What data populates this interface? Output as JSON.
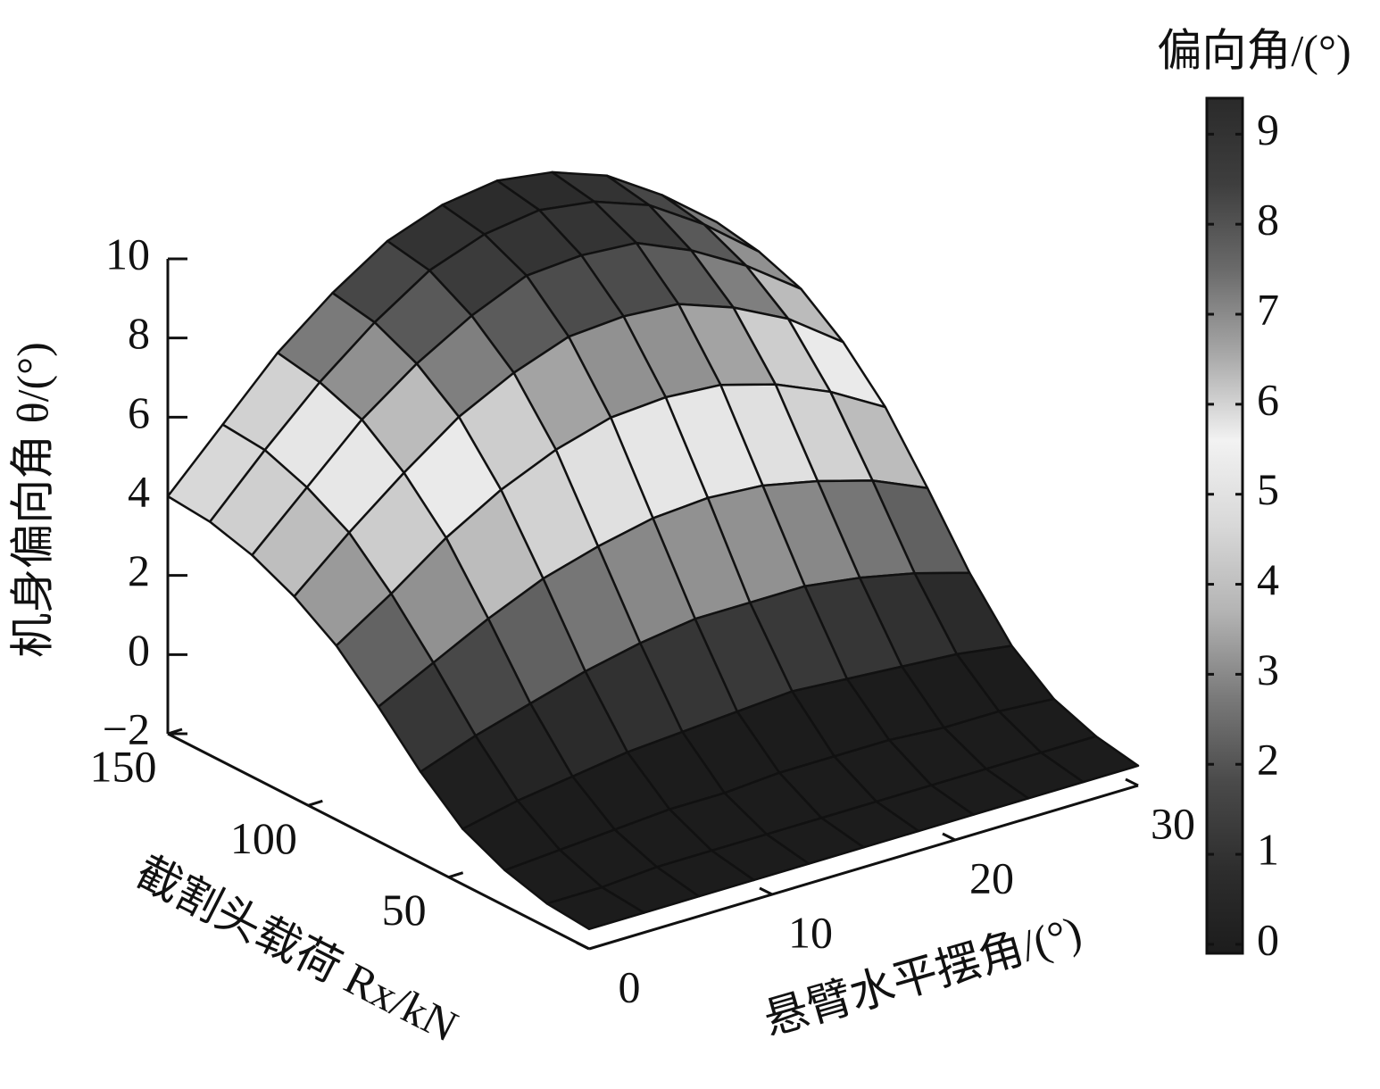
{
  "chart_data": {
    "type": "surface",
    "xlabel": "悬臂水平摆角/(°)",
    "ylabel": "截割头载荷 Rx/kN",
    "zlabel": "机身偏向角 θ/(°)",
    "colorbar_title": "偏向角/(°)",
    "x": [
      0,
      3,
      6,
      9,
      12,
      15,
      18,
      21,
      24,
      27,
      30
    ],
    "y": [
      0,
      15,
      30,
      45,
      60,
      75,
      90,
      105,
      120,
      135,
      150
    ],
    "z": [
      [
        -1.5,
        -1.5,
        -1.5,
        -1.5,
        -1.5,
        -1.5,
        -1.5,
        -1.5,
        -1.5,
        -1.5,
        -1.5
      ],
      [
        -1.4,
        -1.4,
        -1.3,
        -1.3,
        -1.3,
        -1.3,
        -1.3,
        -1.3,
        -1.3,
        -1.3,
        -1.3
      ],
      [
        -1.1,
        -1.0,
        -0.9,
        -0.8,
        -0.8,
        -0.7,
        -0.7,
        -0.7,
        -0.8,
        -0.8,
        -0.9
      ],
      [
        -0.6,
        -0.3,
        -0.1,
        0.1,
        0.2,
        0.3,
        0.4,
        0.3,
        0.2,
        0.1,
        -0.1
      ],
      [
        0.3,
        0.8,
        1.2,
        1.6,
        1.9,
        2.1,
        2.1,
        2.1,
        1.9,
        1.6,
        1.2
      ],
      [
        1.4,
        2.1,
        2.8,
        3.4,
        3.8,
        4.1,
        4.2,
        4.1,
        3.8,
        3.4,
        2.8
      ],
      [
        2.4,
        3.3,
        4.3,
        5.1,
        5.7,
        6.1,
        6.2,
        6.1,
        5.7,
        5.1,
        4.3
      ],
      [
        3.1,
        4.3,
        5.4,
        6.4,
        7.1,
        7.6,
        7.7,
        7.6,
        7.1,
        6.4,
        5.4
      ],
      [
        3.6,
        4.9,
        6.2,
        7.2,
        8.0,
        8.6,
        8.7,
        8.6,
        8.0,
        7.2,
        6.2
      ],
      [
        3.9,
        5.3,
        6.6,
        7.7,
        8.6,
        9.1,
        9.3,
        9.1,
        8.6,
        7.7,
        6.6
      ],
      [
        4.0,
        5.4,
        6.8,
        7.9,
        8.8,
        9.3,
        9.5,
        9.3,
        8.8,
        7.9,
        6.8
      ]
    ],
    "xlim": [
      0,
      30
    ],
    "xticks": [
      0,
      10,
      20,
      30
    ],
    "ylim": [
      0,
      150
    ],
    "yticks": [
      50,
      100,
      150
    ],
    "zlim": [
      -2,
      10
    ],
    "zticks": [
      {
        "value": -2,
        "label": "−2"
      },
      0,
      2,
      4,
      6,
      8,
      10
    ],
    "clim": [
      -0.1,
      9.4
    ],
    "cticks": [
      0,
      1,
      2,
      3,
      4,
      5,
      6,
      7,
      8,
      9
    ],
    "colormap": [
      "#1c1c1c",
      "#2e2e2e",
      "#4a4a4a",
      "#7a7a7a",
      "#b4b4b4",
      "#d8d8d8",
      "#f2f2f2",
      "#a8a8a8",
      "#6a6a6a",
      "#3e3e3e",
      "#2a2a2a"
    ],
    "edge_color": "#111111"
  }
}
